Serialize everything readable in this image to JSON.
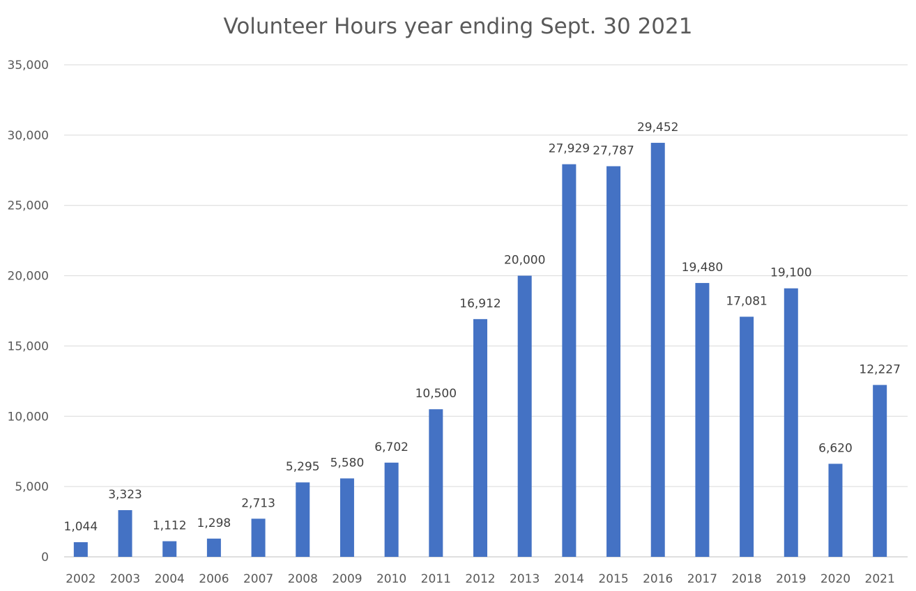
{
  "chart_data": {
    "type": "bar",
    "title": "Volunteer Hours  year ending Sept. 30 2021",
    "xlabel": "",
    "ylabel": "",
    "categories": [
      "2002",
      "2003",
      "2004",
      "2006",
      "2007",
      "2008",
      "2009",
      "2010",
      "2011",
      "2012",
      "2013",
      "2014",
      "2015",
      "2016",
      "2017",
      "2018",
      "2019",
      "2020",
      "2021"
    ],
    "values": [
      1044,
      3323,
      1112,
      1298,
      2713,
      5295,
      5580,
      6702,
      10500,
      16912,
      20000,
      27929,
      27787,
      29452,
      19480,
      17081,
      19100,
      6620,
      12227
    ],
    "data_labels": [
      "1,044",
      "3,323",
      "1,112",
      "1,298",
      "2,713",
      "5,295",
      "5,580",
      "6,702",
      "10,500",
      "16,912",
      "20,000",
      "27,929",
      "27,787",
      "29,452",
      "19,480",
      "17,081",
      "19,100",
      "6,620",
      "12,227"
    ],
    "ylim": [
      0,
      35000
    ],
    "y_ticks": [
      0,
      5000,
      10000,
      15000,
      20000,
      25000,
      30000,
      35000
    ],
    "y_tick_labels": [
      "0",
      "5,000",
      "10,000",
      "15,000",
      "20,000",
      "25,000",
      "30,000",
      "35,000"
    ],
    "grid": true,
    "legend": "none",
    "bar_color": "#4472C4",
    "grid_color": "#D9D9D9"
  }
}
